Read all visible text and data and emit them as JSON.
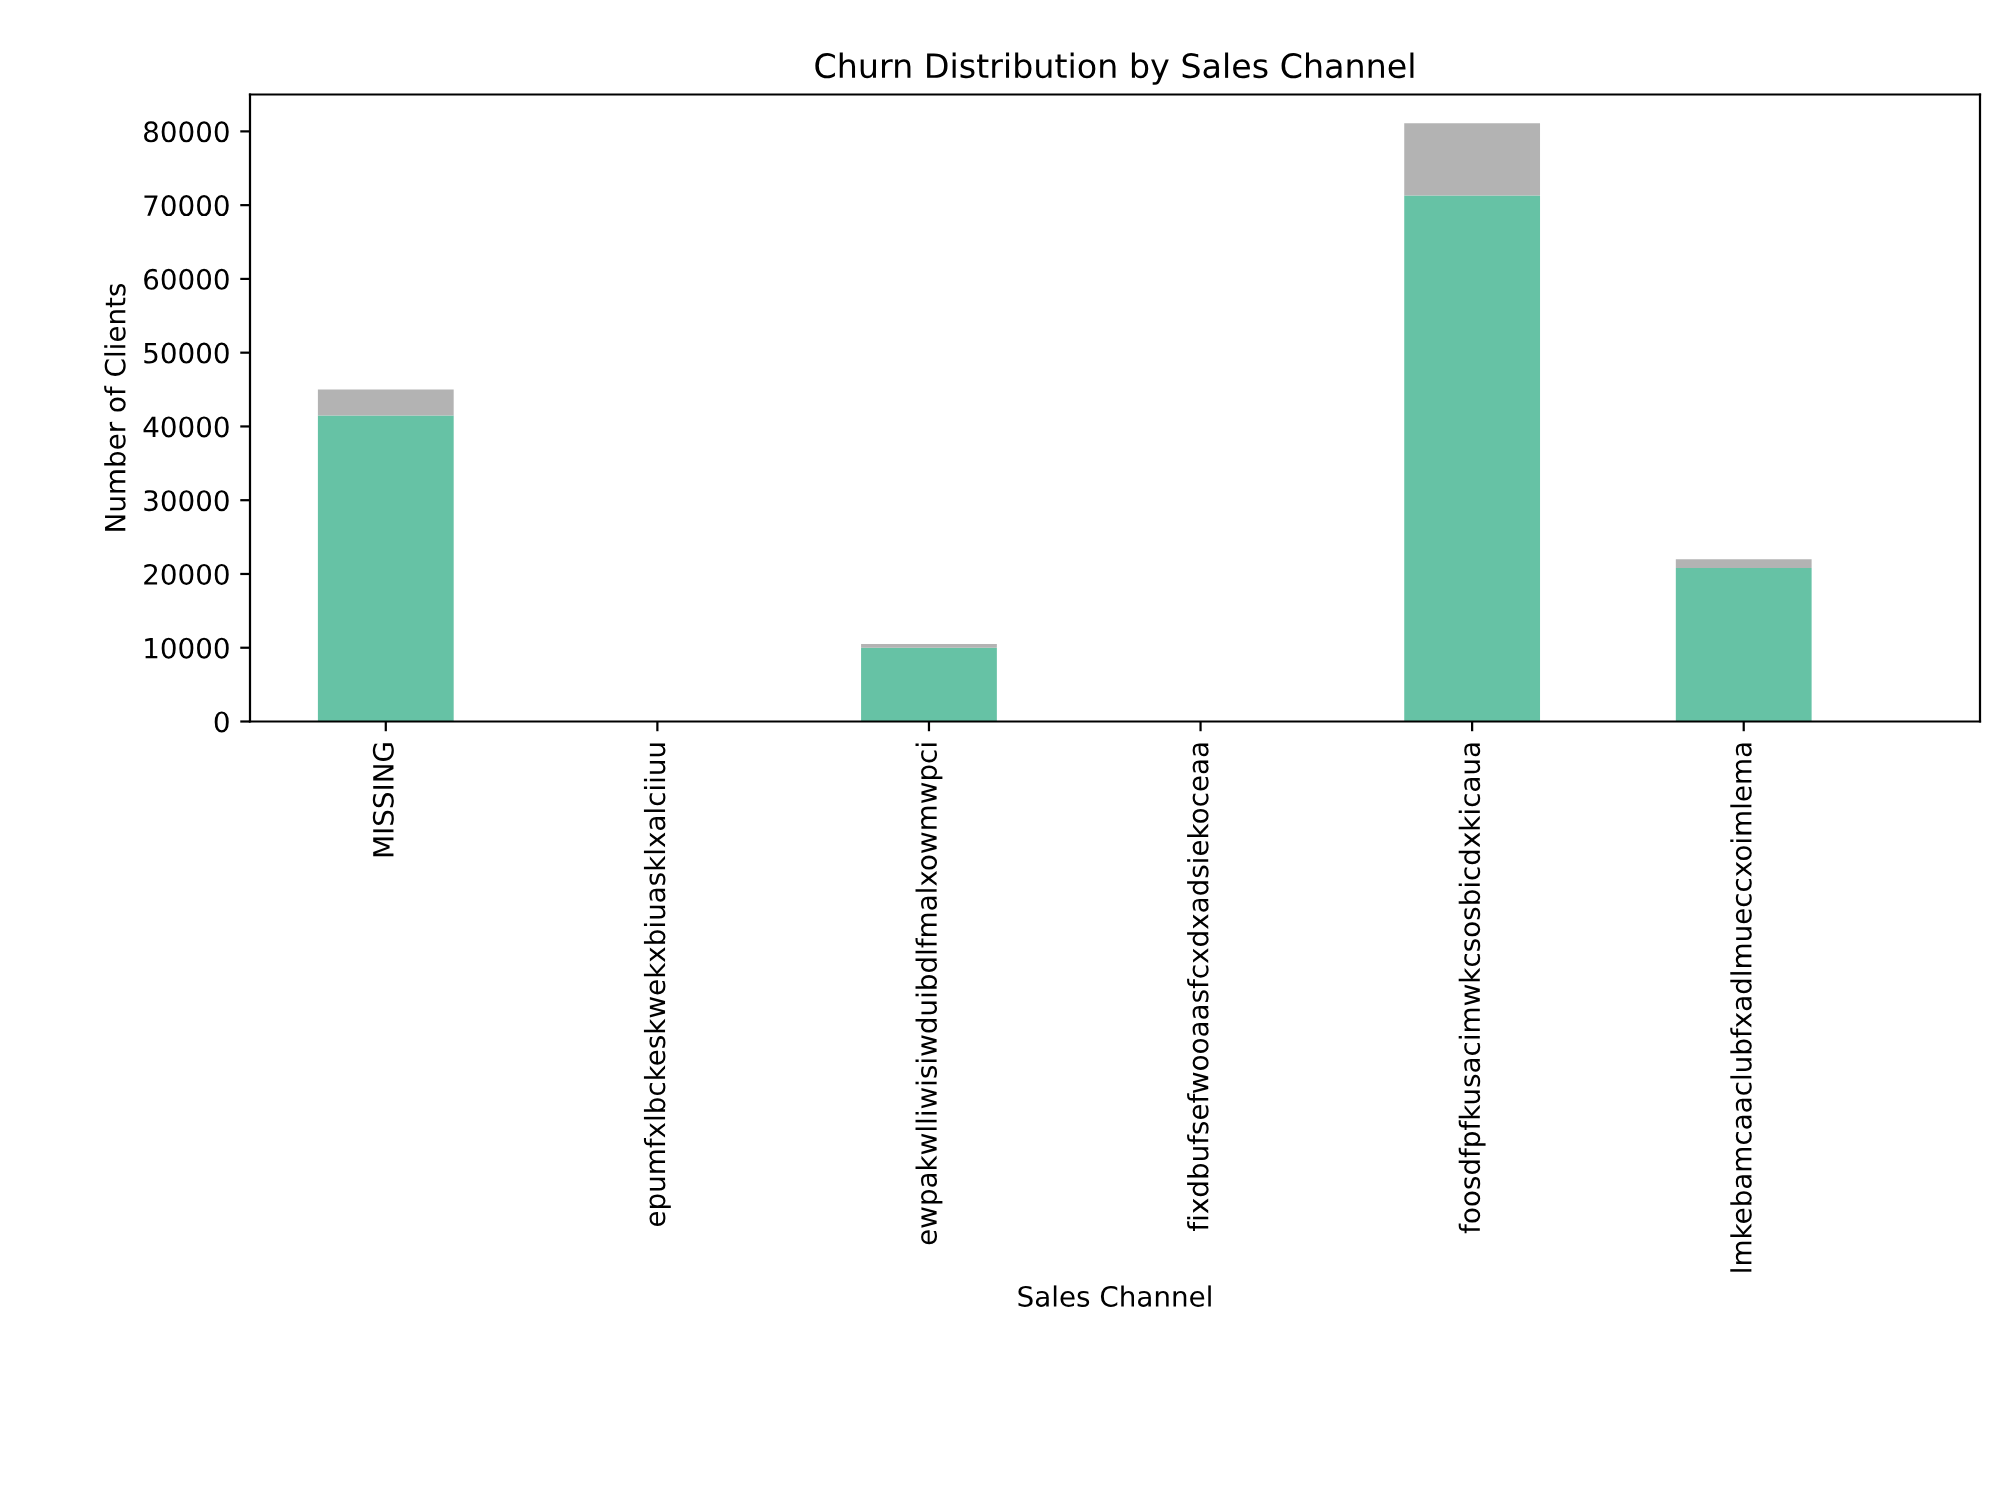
{
  "chart_data": {
    "type": "bar",
    "title": "Churn Distribution by Sales Channel",
    "xlabel": "Sales Channel",
    "ylabel": "Number of Clients",
    "categories": [
      "MISSING",
      "epumfxlbckeskwekxbiuasklxalciiuu",
      "ewpakwlliwisiwduibdlfmalxowmwpci",
      "fixdbufsefwooaasfcxdxadsiekoceaa",
      "foosdfpfkusacimwkcsosbicdxkicaua",
      "lmkebamcaaclubfxadlmueccxoimlema"
    ],
    "stacked": true,
    "series": [
      {
        "color": "#66c2a5",
        "values": [
          41500,
          0,
          10000,
          0,
          71300,
          20800
        ]
      },
      {
        "color": "#b3b3b3",
        "values": [
          3500,
          0,
          500,
          0,
          9800,
          1200
        ]
      }
    ],
    "ylim": [
      0,
      85000
    ],
    "yticks": [
      0,
      10000,
      20000,
      30000,
      40000,
      50000,
      60000,
      70000,
      80000
    ],
    "grid": false
  }
}
